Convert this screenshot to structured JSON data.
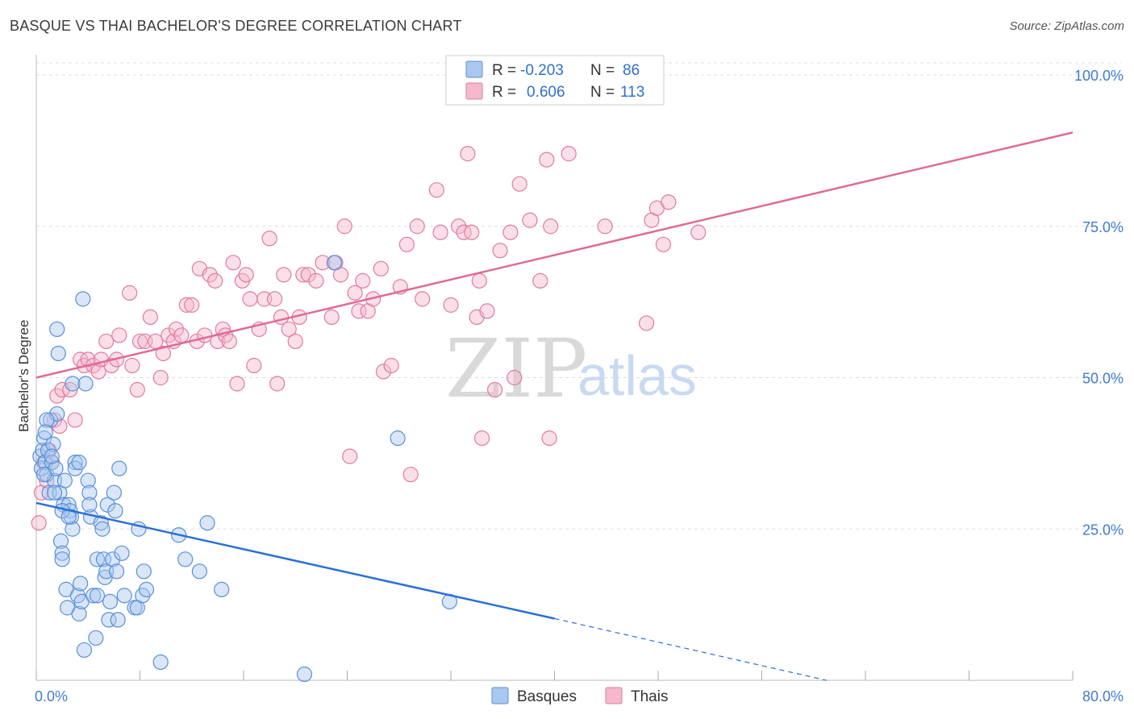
{
  "title": "BASQUE VS THAI BACHELOR'S DEGREE CORRELATION CHART",
  "source": "Source: ZipAtlas.com",
  "watermark": {
    "part1": "ZIP",
    "part2": "atlas"
  },
  "legend": {
    "rows": [
      {
        "r_label": "R =",
        "r_value": "-0.203",
        "n_label": "N =",
        "n_value": "86",
        "color": "#a8c8f0"
      },
      {
        "r_label": "R =",
        "r_value": "0.606",
        "n_label": "N =",
        "n_value": "113",
        "color": "#f5b8cc"
      }
    ]
  },
  "bottom_legend": [
    {
      "label": "Basques",
      "color": "#a8c8f0"
    },
    {
      "label": "Thais",
      "color": "#f5b8cc"
    }
  ],
  "colors": {
    "basque_fill": "#a8c8f0",
    "basque_stroke": "#5b8fd6",
    "basque_line": "#2a6fd6",
    "thai_fill": "#f5b8cc",
    "thai_stroke": "#e07ba0",
    "thai_line": "#e06a96",
    "axis_text": "#3f7bd0",
    "grid": "#dddddd"
  },
  "chart_data": {
    "type": "scatter",
    "title": "BASQUE VS THAI BACHELOR'S DEGREE CORRELATION CHART",
    "xlabel": "",
    "ylabel": "Bachelor's Degree",
    "xlim": [
      0,
      80
    ],
    "ylim": [
      0,
      102
    ],
    "x_tick_labels": [
      "0.0%",
      "80.0%"
    ],
    "y_ticks": [
      25,
      50,
      75,
      100
    ],
    "y_tick_labels": [
      "25.0%",
      "50.0%",
      "75.0%",
      "100.0%"
    ],
    "grid": true,
    "series": [
      {
        "name": "Basques",
        "r": -0.203,
        "n": 86,
        "trend": {
          "x0": 0,
          "y0": 29.3,
          "x1": 40,
          "y1": 10.2,
          "dashed_to_x": 61,
          "dashed_to_y": 0
        },
        "points": [
          [
            0.3,
            37
          ],
          [
            0.4,
            35
          ],
          [
            0.5,
            38
          ],
          [
            0.6,
            40
          ],
          [
            0.7,
            36
          ],
          [
            0.8,
            34
          ],
          [
            0.9,
            38
          ],
          [
            1.0,
            31
          ],
          [
            1.1,
            43
          ],
          [
            1.2,
            36
          ],
          [
            1.3,
            39
          ],
          [
            1.4,
            33
          ],
          [
            1.5,
            35
          ],
          [
            1.6,
            44
          ],
          [
            1.6,
            58
          ],
          [
            1.7,
            54
          ],
          [
            1.8,
            31
          ],
          [
            1.9,
            23
          ],
          [
            2.0,
            21
          ],
          [
            2.0,
            20
          ],
          [
            2.1,
            29
          ],
          [
            2.2,
            33
          ],
          [
            2.3,
            15
          ],
          [
            2.4,
            12
          ],
          [
            2.5,
            29
          ],
          [
            2.6,
            28
          ],
          [
            2.7,
            27
          ],
          [
            2.8,
            25
          ],
          [
            2.8,
            49
          ],
          [
            3.0,
            36
          ],
          [
            3.0,
            35
          ],
          [
            3.2,
            14
          ],
          [
            3.3,
            11
          ],
          [
            3.4,
            16
          ],
          [
            3.5,
            13
          ],
          [
            3.6,
            63
          ],
          [
            3.7,
            5
          ],
          [
            3.8,
            49
          ],
          [
            4.0,
            33
          ],
          [
            4.1,
            31
          ],
          [
            4.2,
            27
          ],
          [
            4.4,
            14
          ],
          [
            4.6,
            7
          ],
          [
            4.7,
            14
          ],
          [
            4.7,
            20
          ],
          [
            5.0,
            26
          ],
          [
            5.1,
            25
          ],
          [
            5.2,
            20
          ],
          [
            5.3,
            17
          ],
          [
            5.4,
            18
          ],
          [
            5.5,
            29
          ],
          [
            5.6,
            10
          ],
          [
            5.7,
            13
          ],
          [
            5.9,
            20
          ],
          [
            6.0,
            31
          ],
          [
            6.1,
            28
          ],
          [
            6.2,
            18
          ],
          [
            6.3,
            10
          ],
          [
            6.4,
            35
          ],
          [
            6.6,
            21
          ],
          [
            6.8,
            14
          ],
          [
            7.6,
            12
          ],
          [
            7.8,
            12
          ],
          [
            7.9,
            25
          ],
          [
            8.2,
            14
          ],
          [
            8.3,
            18
          ],
          [
            8.5,
            15
          ],
          [
            9.6,
            3
          ],
          [
            11.0,
            24
          ],
          [
            11.5,
            20
          ],
          [
            12.6,
            18
          ],
          [
            13.2,
            26
          ],
          [
            14.3,
            15
          ],
          [
            20.7,
            1
          ],
          [
            23.0,
            69
          ],
          [
            27.9,
            40
          ],
          [
            31.9,
            13
          ],
          [
            0.8,
            43
          ],
          [
            0.6,
            34
          ],
          [
            1.4,
            31
          ],
          [
            2.0,
            28
          ],
          [
            2.5,
            27
          ],
          [
            3.3,
            36
          ],
          [
            0.7,
            41
          ],
          [
            1.2,
            37
          ],
          [
            4.1,
            29
          ]
        ]
      },
      {
        "name": "Thais",
        "r": 0.606,
        "n": 113,
        "trend": {
          "x0": 0,
          "y0": 50,
          "x1": 80,
          "y1": 90.5
        },
        "points": [
          [
            0.2,
            26
          ],
          [
            0.4,
            31
          ],
          [
            0.6,
            36
          ],
          [
            0.8,
            33
          ],
          [
            1.0,
            38
          ],
          [
            1.2,
            36
          ],
          [
            1.4,
            43
          ],
          [
            1.6,
            47
          ],
          [
            1.8,
            42
          ],
          [
            2.0,
            48
          ],
          [
            2.6,
            48
          ],
          [
            3.0,
            43
          ],
          [
            3.4,
            53
          ],
          [
            3.7,
            52
          ],
          [
            4.0,
            53
          ],
          [
            4.4,
            52
          ],
          [
            4.8,
            51
          ],
          [
            5.0,
            53
          ],
          [
            5.4,
            56
          ],
          [
            5.8,
            52
          ],
          [
            6.2,
            53
          ],
          [
            6.4,
            57
          ],
          [
            7.2,
            64
          ],
          [
            7.4,
            52
          ],
          [
            7.8,
            48
          ],
          [
            8.0,
            56
          ],
          [
            8.4,
            56
          ],
          [
            8.8,
            60
          ],
          [
            9.2,
            56
          ],
          [
            9.6,
            50
          ],
          [
            9.8,
            54
          ],
          [
            10.2,
            57
          ],
          [
            10.6,
            56
          ],
          [
            10.8,
            58
          ],
          [
            11.2,
            57
          ],
          [
            11.6,
            62
          ],
          [
            12.0,
            62
          ],
          [
            12.4,
            56
          ],
          [
            12.6,
            68
          ],
          [
            13.0,
            57
          ],
          [
            13.4,
            67
          ],
          [
            13.8,
            66
          ],
          [
            14.0,
            56
          ],
          [
            14.4,
            58
          ],
          [
            14.6,
            57
          ],
          [
            14.9,
            56
          ],
          [
            15.2,
            69
          ],
          [
            15.5,
            49
          ],
          [
            15.9,
            66
          ],
          [
            16.2,
            67
          ],
          [
            16.5,
            63
          ],
          [
            16.8,
            52
          ],
          [
            17.2,
            58
          ],
          [
            17.6,
            63
          ],
          [
            18.0,
            73
          ],
          [
            18.4,
            63
          ],
          [
            18.6,
            49
          ],
          [
            18.9,
            60
          ],
          [
            19.1,
            67
          ],
          [
            19.5,
            58
          ],
          [
            20.0,
            56
          ],
          [
            20.3,
            60
          ],
          [
            20.6,
            67
          ],
          [
            21.0,
            67
          ],
          [
            21.6,
            66
          ],
          [
            22.1,
            69
          ],
          [
            22.8,
            60
          ],
          [
            23.1,
            69
          ],
          [
            23.5,
            67
          ],
          [
            23.8,
            75
          ],
          [
            24.2,
            37
          ],
          [
            24.6,
            64
          ],
          [
            24.9,
            61
          ],
          [
            25.2,
            66
          ],
          [
            25.6,
            61
          ],
          [
            26.0,
            63
          ],
          [
            26.6,
            68
          ],
          [
            26.8,
            51
          ],
          [
            27.4,
            52
          ],
          [
            28.1,
            65
          ],
          [
            28.6,
            72
          ],
          [
            28.9,
            34
          ],
          [
            29.4,
            75
          ],
          [
            29.8,
            63
          ],
          [
            30.9,
            81
          ],
          [
            31.2,
            74
          ],
          [
            32.0,
            62
          ],
          [
            32.6,
            75
          ],
          [
            33.0,
            74
          ],
          [
            33.3,
            87
          ],
          [
            33.6,
            74
          ],
          [
            34.0,
            60
          ],
          [
            34.2,
            66
          ],
          [
            34.4,
            40
          ],
          [
            34.8,
            61
          ],
          [
            35.4,
            48
          ],
          [
            35.8,
            71
          ],
          [
            36.6,
            74
          ],
          [
            36.9,
            50
          ],
          [
            37.3,
            82
          ],
          [
            38.1,
            76
          ],
          [
            38.9,
            66
          ],
          [
            39.4,
            86
          ],
          [
            39.6,
            40
          ],
          [
            39.7,
            75
          ],
          [
            41.1,
            87
          ],
          [
            43.9,
            75
          ],
          [
            47.1,
            59
          ],
          [
            47.5,
            76
          ],
          [
            47.9,
            78
          ],
          [
            48.4,
            72
          ],
          [
            48.8,
            79
          ],
          [
            51.1,
            74
          ]
        ]
      }
    ]
  }
}
